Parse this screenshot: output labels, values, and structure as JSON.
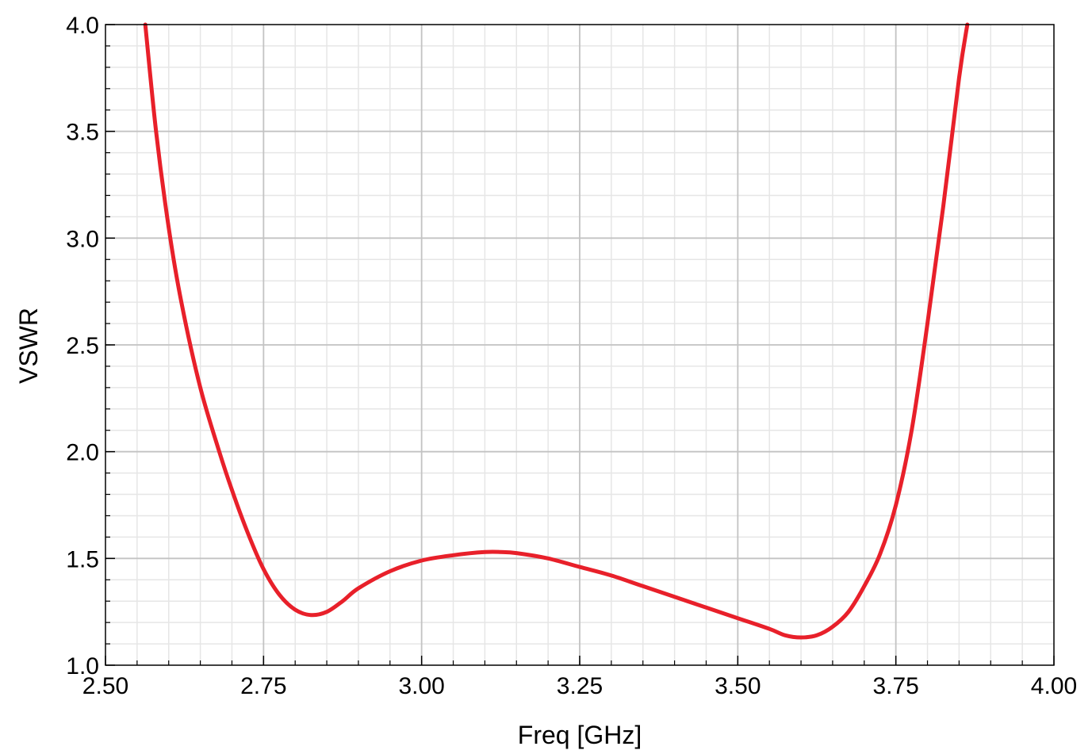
{
  "chart_data": {
    "type": "line",
    "title": "",
    "xlabel": "Freq [GHz]",
    "ylabel": "VSWR",
    "xlim": [
      2.5,
      4.0
    ],
    "ylim": [
      1.0,
      4.0
    ],
    "x_ticks": [
      "2.50",
      "2.75",
      "3.00",
      "3.25",
      "3.50",
      "3.75",
      "4.00"
    ],
    "y_ticks": [
      "1.0",
      "1.5",
      "2.0",
      "2.5",
      "3.0",
      "3.5",
      "4.0"
    ],
    "grid": true,
    "series": [
      {
        "color": "#e8202a",
        "x": [
          2.563,
          2.58,
          2.6,
          2.62,
          2.65,
          2.68,
          2.7,
          2.725,
          2.75,
          2.775,
          2.8,
          2.825,
          2.85,
          2.875,
          2.9,
          2.95,
          3.0,
          3.05,
          3.1,
          3.125,
          3.15,
          3.2,
          3.25,
          3.3,
          3.35,
          3.4,
          3.45,
          3.5,
          3.55,
          3.575,
          3.6,
          3.625,
          3.65,
          3.675,
          3.7,
          3.725,
          3.75,
          3.775,
          3.8,
          3.825,
          3.85,
          3.863
        ],
        "y": [
          4.0,
          3.5,
          3.05,
          2.7,
          2.3,
          2.0,
          1.82,
          1.62,
          1.45,
          1.33,
          1.26,
          1.235,
          1.25,
          1.3,
          1.36,
          1.44,
          1.49,
          1.515,
          1.53,
          1.53,
          1.525,
          1.5,
          1.46,
          1.42,
          1.37,
          1.32,
          1.27,
          1.22,
          1.17,
          1.14,
          1.13,
          1.14,
          1.18,
          1.25,
          1.37,
          1.52,
          1.75,
          2.1,
          2.6,
          3.15,
          3.75,
          4.0
        ]
      }
    ]
  }
}
